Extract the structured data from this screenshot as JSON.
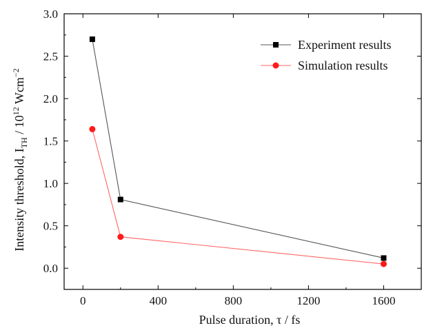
{
  "chart_data": {
    "type": "line",
    "x": [
      50,
      200,
      1600
    ],
    "series": [
      {
        "name": "Experiment results",
        "values": [
          2.7,
          0.81,
          0.12
        ],
        "color": "#000000",
        "marker": "square",
        "line_color": "#555555"
      },
      {
        "name": "Simulation results",
        "values": [
          1.64,
          0.37,
          0.05
        ],
        "color": "#ff1a1a",
        "marker": "circle",
        "line_color": "#ff6666"
      }
    ],
    "xlabel": "Pulse duration, τ / fs",
    "ylabel": {
      "prefix": "Intensity threshold, I",
      "subscript": "TH",
      "middle": " / 10",
      "superscript": "12",
      "unit": " Wcm",
      "unit_superscript": "−2"
    },
    "xlim": [
      -100,
      1800
    ],
    "ylim": [
      -0.25,
      3.0
    ],
    "xticks": [
      0,
      400,
      800,
      1200,
      1600
    ],
    "yticks": [
      0.0,
      0.5,
      1.0,
      1.5,
      2.0,
      2.5,
      3.0
    ],
    "ytick_labels": [
      "0.0",
      "0.5",
      "1.0",
      "1.5",
      "2.0",
      "2.5",
      "3.0"
    ],
    "xtick_labels": [
      "0",
      "400",
      "800",
      "1200",
      "1600"
    ],
    "grid": false,
    "legend_position": "top-right"
  }
}
